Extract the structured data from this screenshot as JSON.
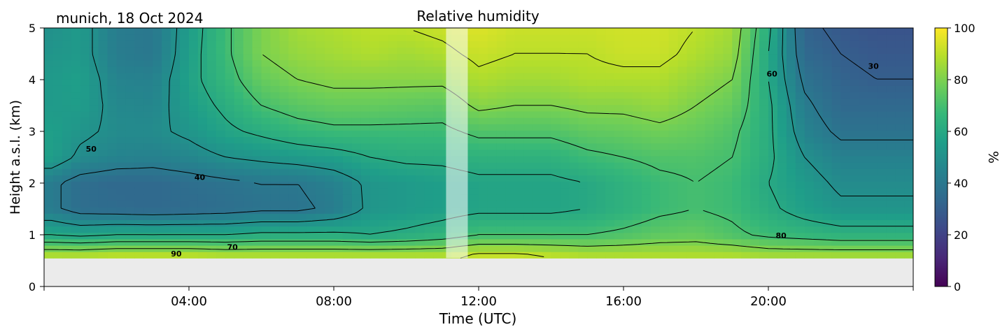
{
  "chart_data": {
    "type": "heatmap",
    "site_date": "munich, 18 Oct 2024",
    "title": "Relative humidity",
    "xlabel": "Time (UTC)",
    "ylabel": "Height a.s.l. (km)",
    "xlim": [
      0,
      24
    ],
    "ylim": [
      0,
      5
    ],
    "x_ticks": [
      4,
      8,
      12,
      16,
      20
    ],
    "x_tick_labels": [
      "04:00",
      "08:00",
      "12:00",
      "16:00",
      "20:00"
    ],
    "y_ticks": [
      0,
      1,
      2,
      3,
      4,
      5
    ],
    "y_tick_labels": [
      "0",
      "1",
      "2",
      "3",
      "4",
      "5"
    ],
    "no_data_below_km": 0.55,
    "masked_interval_hours": [
      11.1,
      11.7
    ],
    "colorbar": {
      "label": "%",
      "range": [
        0,
        100
      ],
      "ticks": [
        0,
        20,
        40,
        60,
        80,
        100
      ],
      "tick_labels": [
        "0",
        "20",
        "40",
        "60",
        "80",
        "100"
      ],
      "colormap": "viridis",
      "colors": [
        "#440154",
        "#482878",
        "#3e4989",
        "#31688e",
        "#26828e",
        "#1f9e89",
        "#35b779",
        "#6ece58",
        "#b5de2b",
        "#fde725"
      ]
    },
    "contour_levels": [
      30,
      40,
      50,
      60,
      70,
      80,
      90
    ],
    "contour_labels": [
      {
        "text": "50",
        "x": 1.3,
        "y": 2.65
      },
      {
        "text": "40",
        "x": 4.3,
        "y": 2.1
      },
      {
        "text": "90",
        "x": 3.65,
        "y": 0.62
      },
      {
        "text": "70",
        "x": 5.2,
        "y": 0.75
      },
      {
        "text": "80",
        "x": 20.35,
        "y": 0.97
      },
      {
        "text": "60",
        "x": 20.1,
        "y": 4.1
      },
      {
        "text": "30",
        "x": 22.9,
        "y": 4.25
      }
    ],
    "rh_profiles": {
      "heights_km": [
        0.6,
        1.0,
        1.5,
        2.0,
        2.5,
        3.0,
        3.5,
        4.0,
        4.5,
        5.0
      ],
      "times_h": [
        0.2,
        1.0,
        2.0,
        3.0,
        4.0,
        5.0,
        6.0,
        7.0,
        8.0,
        9.0,
        10.0,
        11.0,
        12.0,
        13.0,
        14.0,
        15.0,
        16.0,
        17.0,
        18.0,
        19.0,
        20.0,
        21.0,
        22.0,
        23.0,
        23.9
      ],
      "values": [
        [
          88,
          60,
          42,
          42,
          56,
          56,
          54,
          54,
          52,
          50
        ],
        [
          88,
          58,
          36,
          36,
          48,
          52,
          55,
          56,
          54,
          54
        ],
        [
          90,
          60,
          35,
          34,
          45,
          48,
          47,
          45,
          42,
          42
        ],
        [
          90,
          60,
          34,
          34,
          44,
          48,
          46,
          44,
          40,
          40
        ],
        [
          90,
          60,
          35,
          36,
          46,
          52,
          55,
          57,
          56,
          55
        ],
        [
          88,
          60,
          36,
          38,
          50,
          58,
          62,
          66,
          68,
          68
        ],
        [
          88,
          62,
          38,
          40,
          52,
          62,
          70,
          76,
          80,
          80
        ],
        [
          88,
          62,
          38,
          40,
          54,
          66,
          74,
          80,
          84,
          86
        ],
        [
          88,
          62,
          42,
          44,
          56,
          68,
          76,
          82,
          86,
          88
        ],
        [
          88,
          60,
          52,
          52,
          60,
          68,
          76,
          82,
          88,
          90
        ],
        [
          88,
          62,
          54,
          54,
          62,
          68,
          75,
          82,
          86,
          90
        ],
        [
          88,
          65,
          56,
          56,
          62,
          68,
          74,
          82,
          88,
          92
        ],
        [
          92,
          70,
          58,
          58,
          64,
          72,
          82,
          88,
          92,
          95
        ],
        [
          92,
          70,
          58,
          58,
          64,
          72,
          80,
          86,
          90,
          92
        ],
        [
          90,
          70,
          58,
          58,
          64,
          72,
          80,
          86,
          90,
          92
        ],
        [
          88,
          70,
          60,
          60,
          68,
          75,
          82,
          88,
          90,
          92
        ],
        [
          88,
          72,
          64,
          64,
          70,
          76,
          82,
          88,
          92,
          93
        ],
        [
          88,
          75,
          68,
          68,
          72,
          78,
          84,
          88,
          92,
          93
        ],
        [
          88,
          76,
          70,
          70,
          72,
          76,
          80,
          84,
          88,
          90
        ],
        [
          88,
          72,
          68,
          68,
          70,
          72,
          76,
          80,
          84,
          86
        ],
        [
          86,
          68,
          62,
          60,
          62,
          62,
          62,
          60,
          60,
          62
        ],
        [
          86,
          66,
          56,
          54,
          50,
          45,
          42,
          38,
          34,
          32
        ],
        [
          86,
          64,
          52,
          48,
          44,
          38,
          34,
          32,
          30,
          28
        ],
        [
          86,
          64,
          52,
          48,
          44,
          38,
          34,
          30,
          28,
          26
        ],
        [
          86,
          64,
          52,
          48,
          44,
          38,
          34,
          30,
          28,
          26
        ]
      ]
    }
  }
}
